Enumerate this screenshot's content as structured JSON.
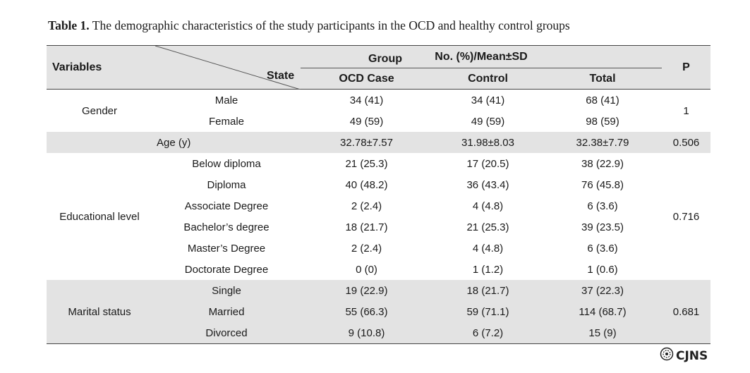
{
  "caption": {
    "label": "Table 1.",
    "text": "The demographic characteristics of the study participants in the OCD and healthy control groups"
  },
  "header": {
    "variables": "Variables",
    "group": "Group",
    "state": "State",
    "stat": "No. (%)/Mean±SD",
    "p": "P",
    "ocd": "OCD Case",
    "control": "Control",
    "total": "Total"
  },
  "gender": {
    "label": "Gender",
    "p": "1",
    "rows": [
      {
        "state": "Male",
        "ocd": "34 (41)",
        "control": "34 (41)",
        "total": "68 (41)"
      },
      {
        "state": "Female",
        "ocd": "49 (59)",
        "control": "49 (59)",
        "total": "98 (59)"
      }
    ]
  },
  "age": {
    "label": "Age (y)",
    "ocd": "32.78±7.57",
    "control": "31.98±8.03",
    "total": "32.38±7.79",
    "p": "0.506"
  },
  "education": {
    "label": "Educational level",
    "p": "0.716",
    "rows": [
      {
        "state": "Below diploma",
        "ocd": "21 (25.3)",
        "control": "17 (20.5)",
        "total": "38 (22.9)"
      },
      {
        "state": "Diploma",
        "ocd": "40 (48.2)",
        "control": "36 (43.4)",
        "total": "76 (45.8)"
      },
      {
        "state": "Associate Degree",
        "ocd": "2 (2.4)",
        "control": "4 (4.8)",
        "total": "6 (3.6)"
      },
      {
        "state": "Bachelor’s degree",
        "ocd": "18 (21.7)",
        "control": "21 (25.3)",
        "total": "39 (23.5)"
      },
      {
        "state": "Master’s Degree",
        "ocd": "2 (2.4)",
        "control": "4 (4.8)",
        "total": "6 (3.6)"
      },
      {
        "state": "Doctorate Degree",
        "ocd": "0 (0)",
        "control": "1 (1.2)",
        "total": "1 (0.6)"
      }
    ]
  },
  "marital": {
    "label": "Marital status",
    "p": "0.681",
    "rows": [
      {
        "state": "Single",
        "ocd": "19 (22.9)",
        "control": "18 (21.7)",
        "total": "37 (22.3)"
      },
      {
        "state": "Married",
        "ocd": "55 (66.3)",
        "control": "59 (71.1)",
        "total": "114 (68.7)"
      },
      {
        "state": "Divorced",
        "ocd": "9 (10.8)",
        "control": "6 (7.2)",
        "total": "15 (9)"
      }
    ]
  },
  "logo": {
    "text": "CJNS",
    "icon": "journal-seal-icon"
  }
}
